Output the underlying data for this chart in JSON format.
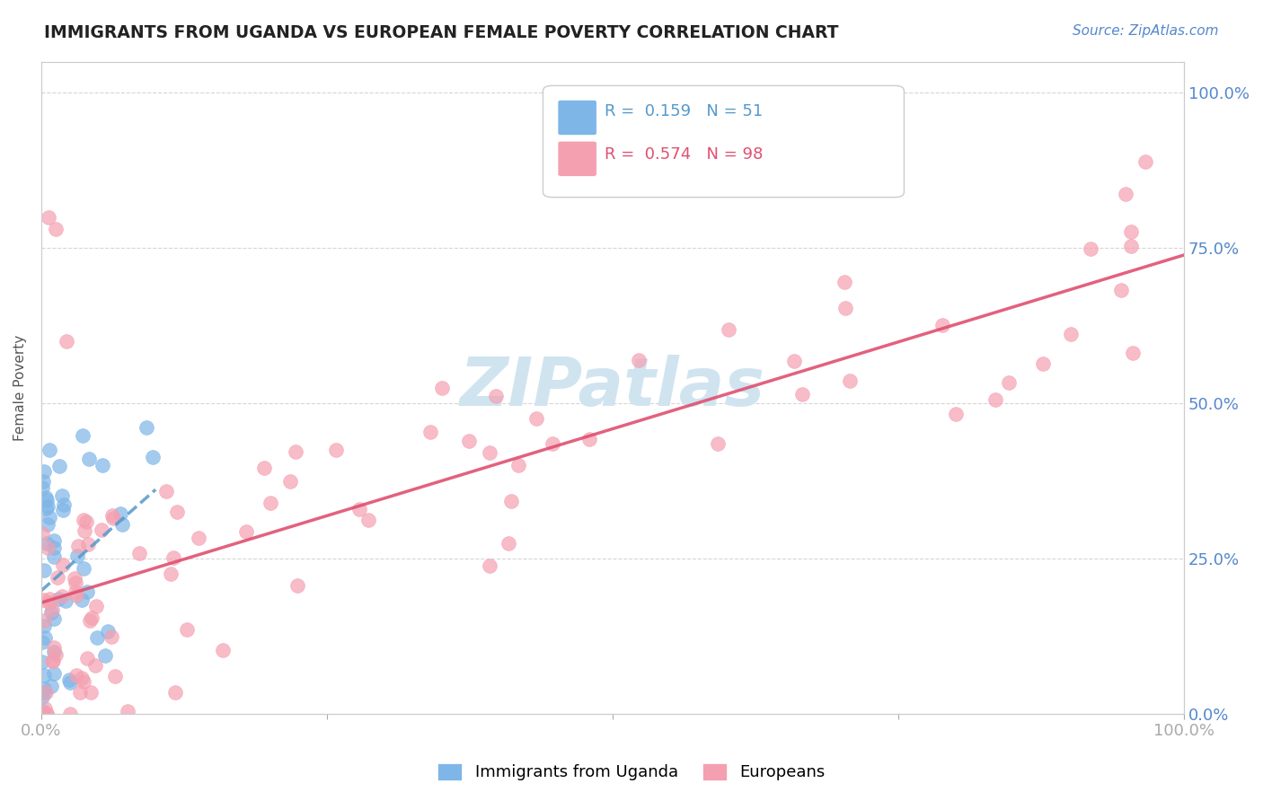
{
  "title": "IMMIGRANTS FROM UGANDA VS EUROPEAN FEMALE POVERTY CORRELATION CHART",
  "source_text": "Source: ZipAtlas.com",
  "ylabel": "Female Poverty",
  "y_tick_labels": [
    "0.0%",
    "25.0%",
    "50.0%",
    "75.0%",
    "100.0%"
  ],
  "y_tick_positions": [
    0.0,
    0.25,
    0.5,
    0.75,
    1.0
  ],
  "legend_label_blue": "Immigrants from Uganda",
  "legend_label_pink": "Europeans",
  "blue_scatter_color": "#7eb6e8",
  "pink_scatter_color": "#f4a0b0",
  "blue_line_color": "#5599cc",
  "pink_line_color": "#e05070",
  "watermark_text": "ZIPatlas",
  "watermark_color": "#d0e4f0",
  "background_color": "#ffffff",
  "axis_label_color": "#5588cc",
  "title_color": "#222222",
  "source_color": "#5588cc"
}
